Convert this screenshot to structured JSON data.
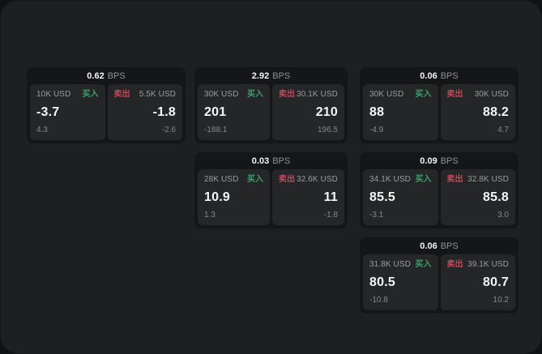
{
  "labels": {
    "bps_unit": "BPS",
    "buy": "买入",
    "sell": "卖出"
  },
  "colors": {
    "buy_green": "#3fa06a",
    "sell_red": "#c04a5c",
    "surface": "#1e1f20",
    "card_background": "#151617",
    "panel_background": "#242628"
  },
  "cards": [
    {
      "bps": "0.62",
      "buy": {
        "amount": "10K USD",
        "value": "-3.7",
        "sub": "4.3"
      },
      "sell": {
        "amount": "5.5K USD",
        "value": "-1.8",
        "sub": "-2.6"
      }
    },
    {
      "bps": "2.92",
      "buy": {
        "amount": "30K USD",
        "value": "201",
        "sub": "-188.1"
      },
      "sell": {
        "amount": "30.1K USD",
        "value": "210",
        "sub": "196.5"
      }
    },
    {
      "bps": "0.06",
      "buy": {
        "amount": "30K USD",
        "value": "88",
        "sub": "-4.9"
      },
      "sell": {
        "amount": "30K USD",
        "value": "88.2",
        "sub": "4.7"
      }
    },
    {
      "bps": "0.03",
      "buy": {
        "amount": "28K USD",
        "value": "10.9",
        "sub": "1.3"
      },
      "sell": {
        "amount": "32.6K USD",
        "value": "11",
        "sub": "-1.8"
      }
    },
    {
      "bps": "0.09",
      "buy": {
        "amount": "34.1K USD",
        "value": "85.5",
        "sub": "-3.1"
      },
      "sell": {
        "amount": "32.8K USD",
        "value": "85.8",
        "sub": "3.0"
      }
    },
    {
      "bps": "0.06",
      "buy": {
        "amount": "31.8K USD",
        "value": "80.5",
        "sub": "-10.8"
      },
      "sell": {
        "amount": "39.1K USD",
        "value": "80.7",
        "sub": "10.2"
      }
    }
  ]
}
